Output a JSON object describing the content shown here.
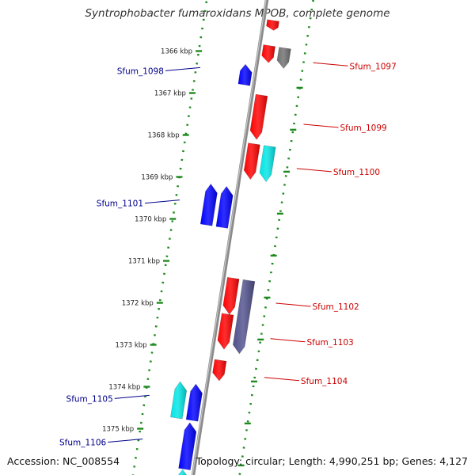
{
  "title": "Syntrophobacter fumaroxidans MPOB, complete genome",
  "footer": {
    "accession": "Accession: NC_008554",
    "topology": "Topology: circular; Length: 4,990,251 bp; Genes: 4,127"
  },
  "colors": {
    "backbone": "#8a8a8a",
    "dotted_track": "#1e8a1e",
    "reverse_label": "#00008b",
    "forward_label": "#cc0000",
    "cds_red": "#ff0000",
    "cds_blue": "#0000ff",
    "cds_cyan": "#00e5e5",
    "cds_gray": "#707070",
    "cds_navy": "#50508c"
  },
  "ticks": [
    {
      "kbp": 1366,
      "label": "1366 kbp"
    },
    {
      "kbp": 1367,
      "label": "1367 kbp"
    },
    {
      "kbp": 1368,
      "label": "1368 kbp"
    },
    {
      "kbp": 1369,
      "label": "1369 kbp"
    },
    {
      "kbp": 1370,
      "label": "1370 kbp"
    },
    {
      "kbp": 1371,
      "label": "1371 kbp"
    },
    {
      "kbp": 1372,
      "label": "1372 kbp"
    },
    {
      "kbp": 1373,
      "label": "1373 kbp"
    },
    {
      "kbp": 1374,
      "label": "1374 kbp"
    },
    {
      "kbp": 1375,
      "label": "1375 kbp"
    }
  ],
  "features": [
    {
      "start": 1365.02,
      "end": 1365.25,
      "strand": "+",
      "track": 1,
      "color": "red"
    },
    {
      "start": 1365.62,
      "end": 1366.02,
      "strand": "+",
      "track": 1,
      "color": "red"
    },
    {
      "start": 1365.62,
      "end": 1366.1,
      "strand": "+",
      "track": 2,
      "color": "gray",
      "label": "Sfum_1097"
    },
    {
      "start": 1366.14,
      "end": 1366.62,
      "strand": "-",
      "track": 1,
      "color": "blue",
      "label": "Sfum_1098"
    },
    {
      "start": 1366.8,
      "end": 1367.85,
      "strand": "+",
      "track": 1,
      "color": "red",
      "label": "Sfum_1099"
    },
    {
      "start": 1367.96,
      "end": 1368.8,
      "strand": "+",
      "track": 1,
      "color": "red"
    },
    {
      "start": 1367.96,
      "end": 1368.8,
      "strand": "+",
      "track": 2,
      "color": "cyan",
      "label": "Sfum_1100"
    },
    {
      "start": 1369.05,
      "end": 1370.02,
      "strand": "-",
      "track": 2,
      "color": "blue",
      "label": "Sfum_1101"
    },
    {
      "start": 1369.05,
      "end": 1370.02,
      "strand": "-",
      "track": 1,
      "color": "blue"
    },
    {
      "start": 1371.16,
      "end": 1372.02,
      "strand": "+",
      "track": 1,
      "color": "red",
      "label": "Sfum_1102"
    },
    {
      "start": 1371.16,
      "end": 1372.9,
      "strand": "+",
      "track": 2,
      "color": "navy"
    },
    {
      "start": 1372.02,
      "end": 1372.85,
      "strand": "+",
      "track": 1,
      "color": "red",
      "label": "Sfum_1103"
    },
    {
      "start": 1373.12,
      "end": 1373.6,
      "strand": "+",
      "track": 1,
      "color": "red",
      "label": "Sfum_1104"
    },
    {
      "start": 1373.76,
      "end": 1374.62,
      "strand": "-",
      "track": 2,
      "color": "cyan",
      "label": "Sfum_1105"
    },
    {
      "start": 1373.76,
      "end": 1374.62,
      "strand": "-",
      "track": 1,
      "color": "blue"
    },
    {
      "start": 1374.68,
      "end": 1375.78,
      "strand": "-",
      "track": 1,
      "color": "blue",
      "label": "Sfum_1106"
    },
    {
      "start": 1375.8,
      "end": 1376.3,
      "strand": "-",
      "track": 1,
      "color": "cyan"
    }
  ]
}
